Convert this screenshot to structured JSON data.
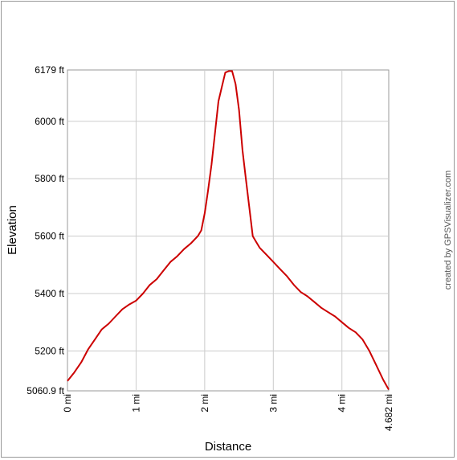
{
  "chart_data": {
    "type": "line",
    "title": "",
    "xlabel": "Distance",
    "ylabel": "Elevation",
    "credit": "created by GPSVisualizer.com",
    "xlim": [
      0,
      4.682
    ],
    "ylim": [
      5060.9,
      6179
    ],
    "grid": true,
    "x_ticks": [
      {
        "value": 0,
        "label": "0 mi"
      },
      {
        "value": 1,
        "label": "1 mi"
      },
      {
        "value": 2,
        "label": "2 mi"
      },
      {
        "value": 3,
        "label": "3 mi"
      },
      {
        "value": 4,
        "label": "4 mi"
      },
      {
        "value": 4.682,
        "label": "4.682 mi"
      }
    ],
    "y_ticks": [
      {
        "value": 5060.9,
        "label": "5060.9 ft"
      },
      {
        "value": 5200,
        "label": "5200 ft"
      },
      {
        "value": 5400,
        "label": "5400 ft"
      },
      {
        "value": 5600,
        "label": "5600 ft"
      },
      {
        "value": 5800,
        "label": "5800 ft"
      },
      {
        "value": 6000,
        "label": "6000 ft"
      },
      {
        "value": 6179,
        "label": "6179 ft"
      }
    ],
    "series": [
      {
        "color": "#cc0000",
        "x": [
          0,
          0.1,
          0.2,
          0.3,
          0.4,
          0.5,
          0.6,
          0.7,
          0.8,
          0.9,
          1.0,
          1.1,
          1.2,
          1.3,
          1.4,
          1.5,
          1.6,
          1.7,
          1.8,
          1.9,
          1.95,
          2.0,
          2.05,
          2.1,
          2.15,
          2.2,
          2.25,
          2.3,
          2.35,
          2.4,
          2.45,
          2.5,
          2.55,
          2.6,
          2.65,
          2.7,
          2.75,
          2.8,
          2.9,
          3.0,
          3.1,
          3.2,
          3.3,
          3.4,
          3.5,
          3.6,
          3.7,
          3.8,
          3.9,
          4.0,
          4.1,
          4.2,
          4.3,
          4.4,
          4.5,
          4.6,
          4.682
        ],
        "y": [
          5095,
          5125,
          5160,
          5205,
          5240,
          5275,
          5295,
          5320,
          5345,
          5362,
          5375,
          5400,
          5430,
          5450,
          5480,
          5510,
          5530,
          5555,
          5575,
          5600,
          5620,
          5680,
          5760,
          5850,
          5960,
          6070,
          6120,
          6170,
          6175,
          6175,
          6130,
          6040,
          5900,
          5800,
          5700,
          5600,
          5580,
          5560,
          5535,
          5510,
          5485,
          5460,
          5430,
          5405,
          5390,
          5370,
          5350,
          5335,
          5320,
          5300,
          5280,
          5265,
          5240,
          5200,
          5150,
          5100,
          5065
        ]
      }
    ]
  }
}
